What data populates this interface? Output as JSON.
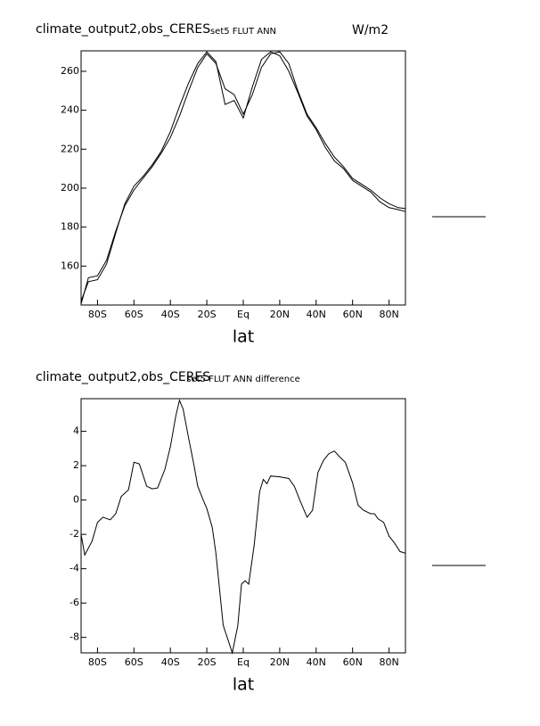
{
  "chart_data": [
    {
      "type": "line",
      "title": "climate_output2,obs_CERES",
      "subtitle": "set5 FLUT ANN",
      "units": "W/m2",
      "xlabel": "lat",
      "x": [
        -89,
        -85,
        -80,
        -75,
        -70,
        -65,
        -60,
        -55,
        -50,
        -45,
        -40,
        -35,
        -30,
        -25,
        -20,
        -15,
        -10,
        -5,
        0,
        5,
        10,
        15,
        20,
        25,
        30,
        35,
        40,
        45,
        50,
        55,
        60,
        65,
        70,
        75,
        80,
        85,
        89
      ],
      "series": [
        {
          "color": "#000000",
          "values": [
            140.5,
            154,
            155,
            163,
            178,
            191,
            199,
            205,
            211,
            218,
            226,
            237,
            250,
            262,
            269,
            264,
            251,
            248,
            238,
            248,
            262,
            269,
            270,
            264,
            250,
            238,
            231,
            223,
            216,
            211,
            205,
            202,
            199,
            195,
            192,
            190,
            189.5
          ]
        },
        {
          "color": "#000000",
          "values": [
            142,
            152,
            153,
            161,
            177,
            192,
            201,
            206,
            212,
            219,
            229,
            242,
            254,
            264,
            270,
            265,
            243,
            245,
            236,
            252,
            266,
            270,
            268,
            260,
            249,
            237,
            230,
            221,
            214,
            210,
            204,
            201,
            198,
            193,
            190,
            189,
            188
          ]
        }
      ],
      "xlim": [
        -89,
        89
      ],
      "ylim": [
        140,
        270.5
      ],
      "xticks": [
        {
          "value": -80,
          "label": "80S"
        },
        {
          "value": -60,
          "label": "60S"
        },
        {
          "value": -40,
          "label": "40S"
        },
        {
          "value": -20,
          "label": "20S"
        },
        {
          "value": 0,
          "label": "Eq"
        },
        {
          "value": 20,
          "label": "20N"
        },
        {
          "value": 40,
          "label": "40N"
        },
        {
          "value": 60,
          "label": "60N"
        },
        {
          "value": 80,
          "label": "80N"
        }
      ],
      "yticks": [
        160,
        180,
        200,
        220,
        240,
        260
      ]
    },
    {
      "type": "line",
      "title": "climate_output2,obs_CERES",
      "subtitle": "set5 FLUT ANN difference",
      "xlabel": "lat",
      "x": [
        -89,
        -87,
        -83,
        -80,
        -77,
        -73,
        -70,
        -67,
        -63,
        -60,
        -57,
        -53,
        -50,
        -47,
        -43,
        -40,
        -37,
        -35,
        -33,
        -30,
        -27,
        -25,
        -22,
        -20,
        -17,
        -15,
        -13,
        -11,
        -6,
        -3,
        -1,
        1,
        3,
        6,
        9,
        11,
        13,
        15,
        20,
        25,
        28,
        31,
        35,
        38,
        41,
        44,
        47,
        50,
        53,
        56,
        60,
        63,
        66,
        70,
        72,
        74,
        77,
        80,
        83,
        86,
        89
      ],
      "series": [
        {
          "color": "#000000",
          "values": [
            -2,
            -3.2,
            -2.4,
            -1.3,
            -1,
            -1.15,
            -0.8,
            0.2,
            0.6,
            2.2,
            2.1,
            0.8,
            0.65,
            0.7,
            1.8,
            3.1,
            4.9,
            5.8,
            5.3,
            3.6,
            2,
            0.8,
            0,
            -0.5,
            -1.6,
            -3.1,
            -5.2,
            -7.3,
            -8.9,
            -7.3,
            -4.9,
            -4.7,
            -4.9,
            -2.6,
            0.5,
            1.2,
            0.95,
            1.4,
            1.35,
            1.25,
            0.8,
            0,
            -1,
            -0.6,
            1.6,
            2.3,
            2.7,
            2.85,
            2.5,
            2.2,
            1,
            -0.3,
            -0.6,
            -0.8,
            -0.8,
            -1.1,
            -1.3,
            -2.1,
            -2.5,
            -3,
            -3.1
          ]
        }
      ],
      "xlim": [
        -89,
        89
      ],
      "ylim": [
        -8.9,
        5.9
      ],
      "xticks": [
        {
          "value": -80,
          "label": "80S"
        },
        {
          "value": -60,
          "label": "60S"
        },
        {
          "value": -40,
          "label": "40S"
        },
        {
          "value": -20,
          "label": "20S"
        },
        {
          "value": 0,
          "label": "Eq"
        },
        {
          "value": 20,
          "label": "20N"
        },
        {
          "value": 40,
          "label": "40N"
        },
        {
          "value": 60,
          "label": "60N"
        },
        {
          "value": 80,
          "label": "80N"
        }
      ],
      "yticks": [
        -8,
        -6,
        -4,
        -2,
        0,
        2,
        4
      ]
    }
  ]
}
